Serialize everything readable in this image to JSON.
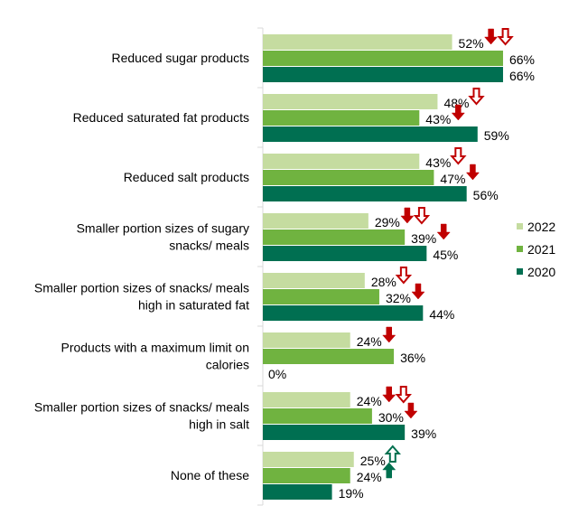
{
  "chart_data": {
    "type": "bar",
    "orientation": "horizontal",
    "categories": [
      "Reduced sugar products",
      "Reduced saturated fat products",
      "Reduced salt products",
      "Smaller portion sizes of sugary snacks/ meals",
      "Smaller portion sizes of snacks/ meals high in saturated fat",
      "Products with a maximum limit on calories",
      "Smaller portion sizes of snacks/ meals high in salt",
      "None of these"
    ],
    "category_lines": [
      [
        "Reduced sugar products"
      ],
      [
        "Reduced saturated fat products"
      ],
      [
        "Reduced salt products"
      ],
      [
        "Smaller portion sizes of sugary",
        "snacks/ meals"
      ],
      [
        "Smaller portion sizes of snacks/ meals",
        "high in saturated fat"
      ],
      [
        "Products with a maximum limit on",
        "calories"
      ],
      [
        "Smaller portion sizes of snacks/ meals",
        "high in salt"
      ],
      [
        "None of these"
      ]
    ],
    "series": [
      {
        "name": "2022",
        "color": "#c5dca0",
        "values": [
          52,
          48,
          43,
          29,
          28,
          24,
          24,
          25
        ],
        "markers": [
          [
            "down-solid",
            "down-outline"
          ],
          [
            "down-outline"
          ],
          [
            "down-outline"
          ],
          [
            "down-solid",
            "down-outline"
          ],
          [
            "down-outline"
          ],
          [
            "down-solid"
          ],
          [
            "down-solid",
            "down-outline"
          ],
          [
            "up-outline"
          ]
        ]
      },
      {
        "name": "2021",
        "color": "#70b340",
        "values": [
          66,
          43,
          47,
          39,
          32,
          36,
          30,
          24
        ],
        "markers": [
          [],
          [
            "down-solid"
          ],
          [
            "down-solid"
          ],
          [
            "down-solid"
          ],
          [
            "down-solid"
          ],
          [],
          [
            "down-solid"
          ],
          [
            "up-solid"
          ]
        ]
      },
      {
        "name": "2020",
        "color": "#006f51",
        "values": [
          66,
          59,
          56,
          45,
          44,
          0,
          39,
          19
        ],
        "markers": [
          [],
          [],
          [],
          [],
          [],
          [],
          [],
          []
        ]
      }
    ],
    "value_suffix": "%",
    "legend_position": "right",
    "marker_colors": {
      "down": "#c00000",
      "up": "#00704f"
    },
    "grid": false
  }
}
